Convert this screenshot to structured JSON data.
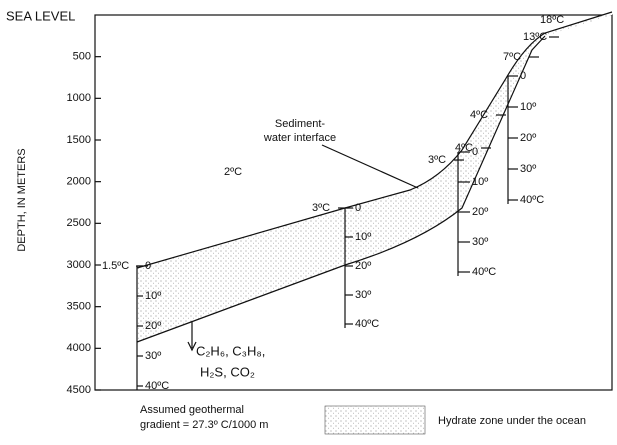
{
  "axis": {
    "top_label": "SEA LEVEL",
    "label": "DEPTH, IN METERS",
    "ticks": [
      500,
      1000,
      1500,
      2000,
      2500,
      3000,
      3500,
      4000,
      4500
    ]
  },
  "interface_label": [
    "Sediment-",
    "water interface"
  ],
  "temperatures": [
    "18ºC",
    "13ºC",
    "7ºC",
    "4ºC",
    "4ºC",
    "3ºC",
    "3ºC",
    "2ºC",
    "1.5ºC"
  ],
  "scales": [
    {
      "labels": [
        "0",
        "10º",
        "20º",
        "30º",
        "40ºC"
      ]
    },
    {
      "labels": [
        "0",
        "10º",
        "20º",
        "30º",
        "40ºC"
      ]
    },
    {
      "labels": [
        "0",
        "10º",
        "20º",
        "30º",
        "40ºC"
      ]
    },
    {
      "labels": [
        "0",
        "10º",
        "20º",
        "30º",
        "40ºC"
      ]
    }
  ],
  "gas": [
    "C₂H₆, C₃H₈,",
    "H₂S, CO₂"
  ],
  "legend": {
    "gradient": [
      "Assumed geothermal",
      "gradient = 27.3º C/1000 m"
    ],
    "zone": "Hydrate zone under the ocean"
  }
}
